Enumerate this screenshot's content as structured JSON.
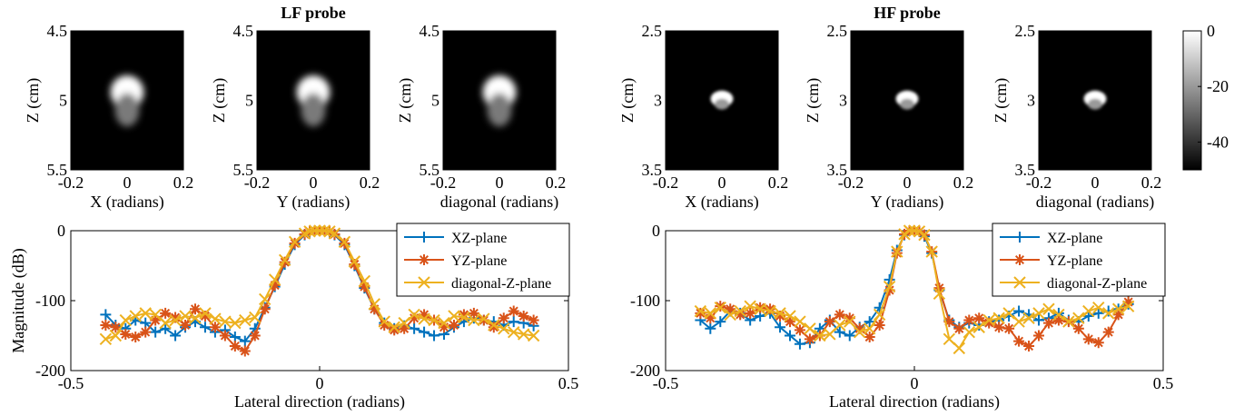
{
  "chart_data": [
    {
      "group": "LF probe",
      "type": "heatmap",
      "xlabel": "X (radians)",
      "ylabel": "Z (cm)",
      "xlim": [
        -0.2,
        0.2
      ],
      "ylim": [
        4.5,
        5.5
      ],
      "xticks": [
        "-0.2",
        "0",
        "0.2"
      ],
      "yticks": [
        "4.5",
        "5",
        "5.5"
      ],
      "spot": {
        "x": 0.0,
        "z_top": 4.82,
        "z_bottom": 5.22,
        "peak_db": 0
      }
    },
    {
      "group": "LF probe",
      "type": "heatmap",
      "title": "LF probe",
      "xlabel": "Y (radians)",
      "ylabel": "Z (cm)",
      "xlim": [
        -0.2,
        0.2
      ],
      "ylim": [
        4.5,
        5.5
      ],
      "xticks": [
        "-0.2",
        "0",
        "0.2"
      ],
      "yticks": [
        "4.5",
        "5",
        "5.5"
      ],
      "spot": {
        "x": 0.0,
        "z_top": 4.82,
        "z_bottom": 5.22,
        "peak_db": 0
      }
    },
    {
      "group": "LF probe",
      "type": "heatmap",
      "xlabel": "diagonal (radians)",
      "ylabel": "Z (cm)",
      "xlim": [
        -0.2,
        0.2
      ],
      "ylim": [
        4.5,
        5.5
      ],
      "xticks": [
        "-0.2",
        "0",
        "0.2"
      ],
      "yticks": [
        "4.5",
        "5",
        "5.5"
      ],
      "spot": {
        "x": 0.0,
        "z_top": 4.82,
        "z_bottom": 5.22,
        "peak_db": 0
      }
    },
    {
      "group": "HF probe",
      "type": "heatmap",
      "xlabel": "X (radians)",
      "ylabel": "Z (cm)",
      "xlim": [
        -0.2,
        0.2
      ],
      "ylim": [
        2.5,
        3.5
      ],
      "xticks": [
        "-0.2",
        "0",
        "0.2"
      ],
      "yticks": [
        "2.5",
        "3",
        "3.5"
      ],
      "spot": {
        "x": 0.0,
        "z_top": 2.93,
        "z_bottom": 3.06,
        "peak_db": 0
      }
    },
    {
      "group": "HF probe",
      "type": "heatmap",
      "title": "HF probe",
      "xlabel": "Y (radians)",
      "ylabel": "Z (cm)",
      "xlim": [
        -0.2,
        0.2
      ],
      "ylim": [
        2.5,
        3.5
      ],
      "xticks": [
        "-0.2",
        "0",
        "0.2"
      ],
      "yticks": [
        "2.5",
        "3",
        "3.5"
      ],
      "spot": {
        "x": 0.0,
        "z_top": 2.93,
        "z_bottom": 3.06,
        "peak_db": 0
      }
    },
    {
      "group": "HF probe",
      "type": "heatmap",
      "xlabel": "diagonal (radians)",
      "ylabel": "Z (cm)",
      "xlim": [
        -0.2,
        0.2
      ],
      "ylim": [
        2.5,
        3.5
      ],
      "xticks": [
        "-0.2",
        "0",
        "0.2"
      ],
      "yticks": [
        "2.5",
        "3",
        "3.5"
      ],
      "spot": {
        "x": 0.0,
        "z_top": 2.93,
        "z_bottom": 3.06,
        "peak_db": 0
      },
      "colorbar": {
        "range": [
          -50,
          0
        ],
        "ticks": [
          "0",
          "-20",
          "-40"
        ],
        "tick_values": [
          0,
          -20,
          -40
        ]
      }
    },
    {
      "group": "LF probe",
      "type": "line",
      "xlabel": "Lateral direction (radians)",
      "ylabel": "Magnitude (dB)",
      "xlim": [
        -0.5,
        0.5
      ],
      "ylim": [
        -200,
        0
      ],
      "xticks": [
        "-0.5",
        "0",
        "0.5"
      ],
      "yticks": [
        "0",
        "-100",
        "-200"
      ],
      "legend_position": "top-right",
      "x": [
        -0.43,
        -0.41,
        -0.39,
        -0.37,
        -0.35,
        -0.33,
        -0.31,
        -0.29,
        -0.27,
        -0.25,
        -0.23,
        -0.21,
        -0.19,
        -0.17,
        -0.15,
        -0.13,
        -0.11,
        -0.09,
        -0.07,
        -0.05,
        -0.03,
        -0.02,
        -0.01,
        0.0,
        0.01,
        0.02,
        0.03,
        0.05,
        0.07,
        0.09,
        0.11,
        0.13,
        0.15,
        0.17,
        0.19,
        0.21,
        0.23,
        0.25,
        0.27,
        0.29,
        0.31,
        0.33,
        0.35,
        0.37,
        0.39,
        0.41,
        0.43
      ],
      "series": [
        {
          "name": "XZ-plane",
          "color": "#0072BD",
          "marker": "+",
          "values": [
            -120,
            -135,
            -140,
            -128,
            -132,
            -145,
            -140,
            -150,
            -138,
            -130,
            -138,
            -145,
            -142,
            -152,
            -158,
            -140,
            -110,
            -80,
            -48,
            -20,
            -6,
            -2,
            0,
            0,
            0,
            -2,
            -6,
            -20,
            -50,
            -82,
            -112,
            -132,
            -140,
            -136,
            -140,
            -145,
            -150,
            -148,
            -138,
            -130,
            -125,
            -128,
            -130,
            -135,
            -130,
            -132,
            -136
          ]
        },
        {
          "name": "YZ-plane",
          "color": "#D95319",
          "marker": "*",
          "values": [
            -135,
            -138,
            -148,
            -152,
            -145,
            -128,
            -118,
            -124,
            -135,
            -112,
            -122,
            -138,
            -150,
            -165,
            -172,
            -150,
            -112,
            -78,
            -45,
            -18,
            -5,
            -1,
            0,
            0,
            0,
            -1,
            -5,
            -18,
            -48,
            -80,
            -112,
            -135,
            -142,
            -140,
            -125,
            -120,
            -128,
            -138,
            -135,
            -120,
            -118,
            -128,
            -138,
            -125,
            -115,
            -122,
            -128
          ]
        },
        {
          "name": "diagonal-Z-plane",
          "color": "#EDB120",
          "marker": "x",
          "values": [
            -155,
            -150,
            -128,
            -122,
            -118,
            -120,
            -132,
            -128,
            -122,
            -125,
            -118,
            -126,
            -130,
            -132,
            -128,
            -124,
            -98,
            -70,
            -42,
            -16,
            -4,
            -1,
            0,
            0,
            0,
            -1,
            -4,
            -16,
            -44,
            -72,
            -105,
            -130,
            -138,
            -132,
            -120,
            -126,
            -128,
            -132,
            -122,
            -124,
            -128,
            -126,
            -135,
            -140,
            -145,
            -148,
            -150
          ]
        }
      ]
    },
    {
      "group": "HF probe",
      "type": "line",
      "xlabel": "Lateral direction (radians)",
      "ylabel": "",
      "xlim": [
        -0.5,
        0.5
      ],
      "ylim": [
        -200,
        0
      ],
      "xticks": [
        "-0.5",
        "0",
        "0.5"
      ],
      "yticks": [
        "0",
        "-100",
        "-200"
      ],
      "legend_position": "top-right",
      "x": [
        -0.43,
        -0.41,
        -0.39,
        -0.37,
        -0.35,
        -0.33,
        -0.31,
        -0.29,
        -0.27,
        -0.25,
        -0.23,
        -0.21,
        -0.19,
        -0.17,
        -0.15,
        -0.13,
        -0.11,
        -0.09,
        -0.07,
        -0.05,
        -0.035,
        -0.02,
        -0.01,
        0.0,
        0.01,
        0.02,
        0.035,
        0.05,
        0.07,
        0.09,
        0.11,
        0.13,
        0.15,
        0.17,
        0.19,
        0.21,
        0.23,
        0.25,
        0.27,
        0.29,
        0.31,
        0.33,
        0.35,
        0.37,
        0.39,
        0.41,
        0.43
      ],
      "series": [
        {
          "name": "XZ-plane",
          "color": "#0072BD",
          "marker": "+",
          "values": [
            -128,
            -140,
            -130,
            -115,
            -118,
            -128,
            -122,
            -118,
            -138,
            -150,
            -162,
            -160,
            -140,
            -128,
            -145,
            -150,
            -138,
            -130,
            -110,
            -70,
            -28,
            -6,
            0,
            0,
            -1,
            -8,
            -32,
            -85,
            -128,
            -138,
            -132,
            -135,
            -130,
            -128,
            -122,
            -115,
            -120,
            -128,
            -125,
            -118,
            -128,
            -130,
            -122,
            -118,
            -115,
            -112,
            -105
          ]
        },
        {
          "name": "YZ-plane",
          "color": "#D95319",
          "marker": "*",
          "values": [
            -118,
            -125,
            -108,
            -112,
            -120,
            -118,
            -110,
            -112,
            -122,
            -130,
            -142,
            -155,
            -150,
            -130,
            -120,
            -125,
            -140,
            -152,
            -135,
            -85,
            -32,
            -5,
            0,
            0,
            -1,
            -6,
            -30,
            -82,
            -130,
            -140,
            -128,
            -125,
            -132,
            -138,
            -140,
            -158,
            -165,
            -150,
            -132,
            -128,
            -130,
            -140,
            -155,
            -160,
            -145,
            -120,
            -102
          ]
        },
        {
          "name": "diagonal-Z-plane",
          "color": "#EDB120",
          "marker": "x",
          "values": [
            -115,
            -118,
            -110,
            -120,
            -115,
            -108,
            -112,
            -115,
            -118,
            -122,
            -130,
            -140,
            -150,
            -148,
            -135,
            -130,
            -145,
            -140,
            -120,
            -80,
            -30,
            -5,
            0,
            0,
            -1,
            -6,
            -30,
            -90,
            -155,
            -168,
            -145,
            -138,
            -128,
            -125,
            -118,
            -130,
            -125,
            -118,
            -112,
            -120,
            -130,
            -125,
            -115,
            -110,
            -118,
            -112,
            -108
          ]
        }
      ]
    }
  ]
}
